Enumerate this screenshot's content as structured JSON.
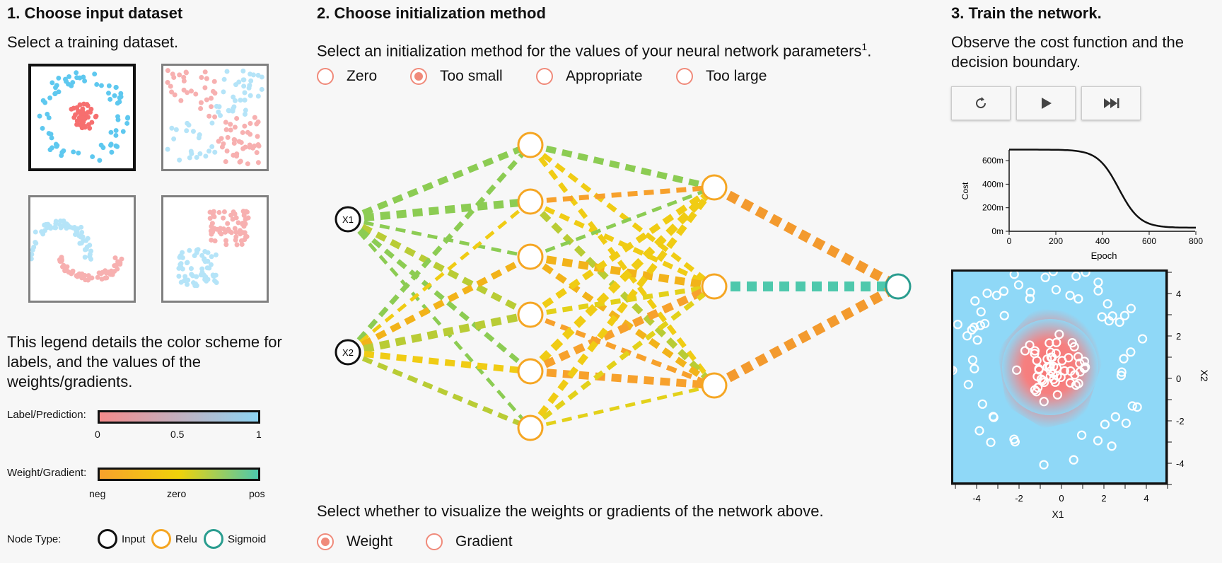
{
  "section1": {
    "title": "1. Choose input dataset",
    "subtitle": "Select a training dataset.",
    "datasets": [
      {
        "name": "circle",
        "selected": true
      },
      {
        "name": "quadrants",
        "selected": false
      },
      {
        "name": "moons",
        "selected": false
      },
      {
        "name": "clusters",
        "selected": false
      }
    ]
  },
  "legend": {
    "description": "This legend details the color scheme for labels, and the values of the weights/gradients.",
    "label_title": "Label/Prediction:",
    "label_ticks": [
      "0",
      "0.5",
      "1"
    ],
    "label_colors": [
      "#f58b8b",
      "#8ed4f3"
    ],
    "weight_title": "Weight/Gradient:",
    "weight_ticks": [
      "neg",
      "zero",
      "pos"
    ],
    "weight_colors": [
      "#f7a12c",
      "#f0d20a",
      "#4ec8ac"
    ],
    "node_title": "Node Type:",
    "node_types": [
      "Input",
      "Relu",
      "Sigmoid"
    ]
  },
  "section2": {
    "title": "2. Choose initialization method",
    "subtitle": "Select an initialization method for the values of your neural network parameters",
    "footnote": "1",
    "period": ".",
    "init_options": [
      "Zero",
      "Too small",
      "Appropriate",
      "Too large"
    ],
    "init_selected": "Too small",
    "network": {
      "input_labels": [
        "X1",
        "X2"
      ]
    },
    "viz_prompt": "Select whether to visualize the weights or gradients of the network above.",
    "viz_options": [
      "Weight",
      "Gradient"
    ],
    "viz_selected": "Weight"
  },
  "section3": {
    "title": "3. Train the network.",
    "subtitle": "Observe the cost function and the decision boundary.",
    "controls": [
      "reset-icon",
      "play-icon",
      "fast-forward-icon"
    ],
    "cost_chart": {
      "ylabel": "Cost",
      "xlabel": "Epoch",
      "yticks": [
        "0m",
        "200m",
        "400m",
        "600m"
      ],
      "xticks": [
        "0",
        "200",
        "400",
        "600",
        "800"
      ]
    },
    "boundary_chart": {
      "xlabel": "X1",
      "ylabel": "X2",
      "xticks": [
        "-4",
        "-2",
        "0",
        "2",
        "4"
      ],
      "yticks": [
        "4",
        "2",
        "0",
        "-2",
        "-4"
      ]
    }
  }
}
